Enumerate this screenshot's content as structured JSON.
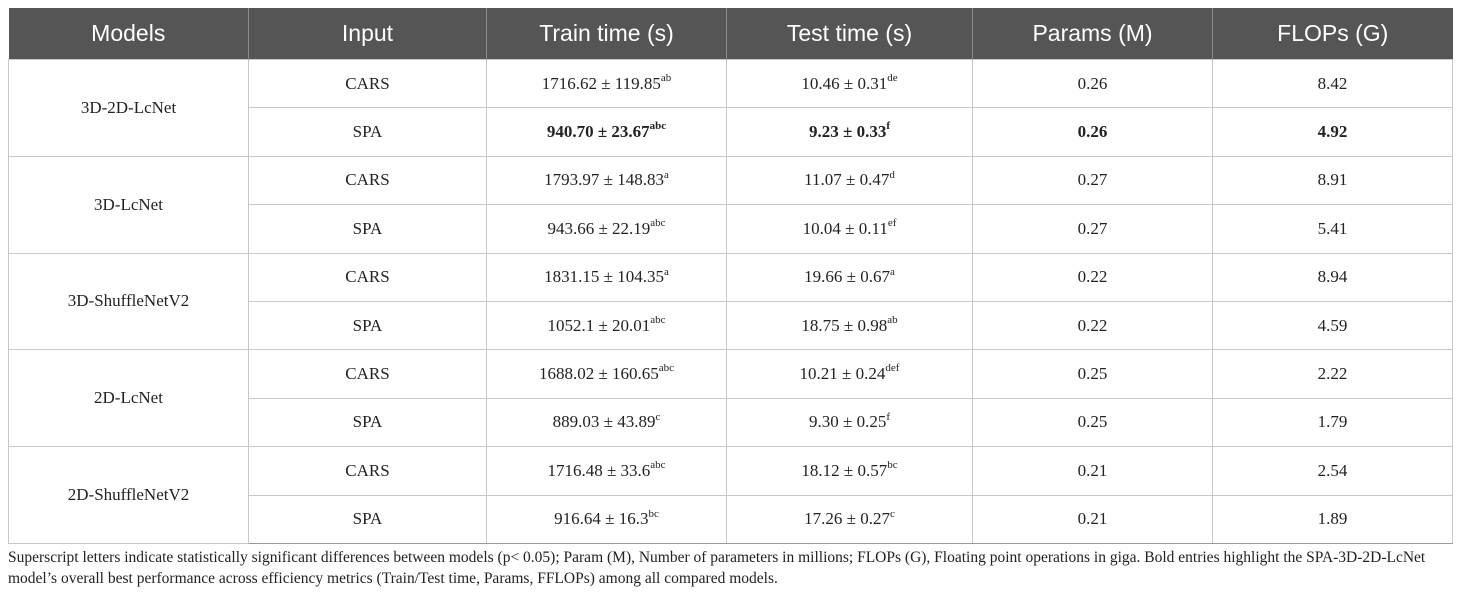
{
  "table": {
    "headers": [
      "Models",
      "Input",
      "Train time (s)",
      "Test time (s)",
      "Params (M)",
      "FLOPs (G)"
    ],
    "groups": [
      {
        "model": "3D-2D-LcNet",
        "rows": [
          {
            "input": "CARS",
            "train": "1716.62 ± 119.85",
            "train_sup": "ab",
            "test": "10.46 ± 0.31",
            "test_sup": "de",
            "params": "0.26",
            "flops": "8.42",
            "bold": false
          },
          {
            "input": "SPA",
            "train": "940.70 ± 23.67",
            "train_sup": "abc",
            "test": "9.23 ± 0.33",
            "test_sup": "f",
            "params": "0.26",
            "flops": "4.92",
            "bold": true
          }
        ]
      },
      {
        "model": "3D-LcNet",
        "rows": [
          {
            "input": "CARS",
            "train": "1793.97 ± 148.83",
            "train_sup": "a",
            "test": "11.07 ± 0.47",
            "test_sup": "d",
            "params": "0.27",
            "flops": "8.91",
            "bold": false
          },
          {
            "input": "SPA",
            "train": "943.66 ± 22.19",
            "train_sup": "abc",
            "test": "10.04 ± 0.11",
            "test_sup": "ef",
            "params": "0.27",
            "flops": "5.41",
            "bold": false
          }
        ]
      },
      {
        "model": "3D-ShuffleNetV2",
        "rows": [
          {
            "input": "CARS",
            "train": "1831.15 ± 104.35",
            "train_sup": "a",
            "test": "19.66 ± 0.67",
            "test_sup": "a",
            "params": "0.22",
            "flops": "8.94",
            "bold": false
          },
          {
            "input": "SPA",
            "train": "1052.1 ± 20.01",
            "train_sup": "abc",
            "test": "18.75 ± 0.98",
            "test_sup": "ab",
            "params": "0.22",
            "flops": "4.59",
            "bold": false
          }
        ]
      },
      {
        "model": "2D-LcNet",
        "rows": [
          {
            "input": "CARS",
            "train": "1688.02 ± 160.65",
            "train_sup": "abc",
            "test": "10.21 ± 0.24",
            "test_sup": "def",
            "params": "0.25",
            "flops": "2.22",
            "bold": false
          },
          {
            "input": "SPA",
            "train": "889.03 ± 43.89",
            "train_sup": "c",
            "test": "9.30 ± 0.25",
            "test_sup": "f",
            "params": "0.25",
            "flops": "1.79",
            "bold": false
          }
        ]
      },
      {
        "model": "2D-ShuffleNetV2",
        "rows": [
          {
            "input": "CARS",
            "train": "1716.48 ± 33.6",
            "train_sup": "abc",
            "test": "18.12 ± 0.57",
            "test_sup": "bc",
            "params": "0.21",
            "flops": "2.54",
            "bold": false
          },
          {
            "input": "SPA",
            "train": "916.64 ± 16.3",
            "train_sup": "bc",
            "test": "17.26 ± 0.27",
            "test_sup": "c",
            "params": "0.21",
            "flops": "1.89",
            "bold": false
          }
        ]
      }
    ]
  },
  "footnote": "Superscript letters indicate statistically significant differences between models (p< 0.05); Param (M), Number of parameters in millions; FLOPs (G), Floating point operations in giga. Bold entries highlight the SPA-3D-2D-LcNet model’s overall best performance across efficiency metrics (Train/Test time, Params, FFLOPs) among all compared models.",
  "colors": {
    "header_bg": "#555555",
    "header_text": "#ffffff",
    "grid": "#c8c8c8"
  }
}
